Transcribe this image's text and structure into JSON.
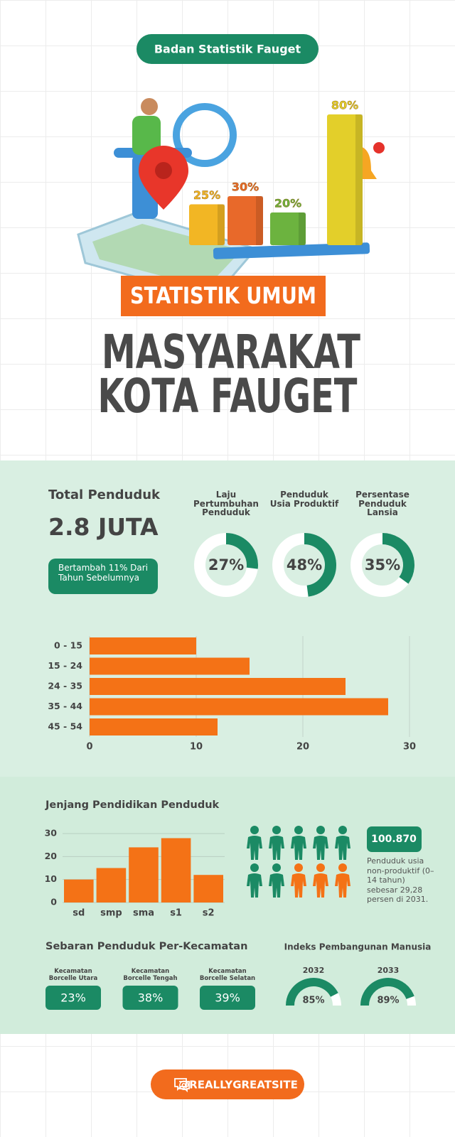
{
  "badge": "Badan Statistik Fauget",
  "banner": "STATISTIK UMUM",
  "title": [
    "MASYARAKAT",
    "KOTA FAUGET"
  ],
  "population": {
    "label": "Total Penduduk",
    "value": "2.8 JUTA",
    "note": "Bertambah 11% Dari Tahun Sebelumnya"
  },
  "chart_data": [
    {
      "type": "bar3d",
      "categories": [
        null,
        null,
        null,
        null
      ],
      "values": [
        25,
        30,
        20,
        80
      ],
      "value_labels": [
        "25%",
        "30%",
        "20%",
        "80%"
      ],
      "colors": [
        "#f2b624",
        "#e8692a",
        "#6cb33f",
        "#e3cf2a"
      ]
    },
    {
      "type": "donut",
      "categories": [
        "Laju Pertumbuhan Penduduk",
        "Penduduk Usia Produktif",
        "Persentase Penduduk Lansia"
      ],
      "values": [
        27,
        48,
        35
      ],
      "value_labels": [
        "27%",
        "48%",
        "35%"
      ],
      "color": "#1b8a64"
    },
    {
      "type": "hbar",
      "categories": [
        "0 - 15",
        "15 - 24",
        "24 - 35",
        "35 - 44",
        "45 - 54"
      ],
      "values": [
        10,
        15,
        24,
        28,
        12
      ],
      "xlim": [
        0,
        30
      ],
      "xticks": [
        0,
        10,
        20,
        30
      ],
      "grid": true,
      "color": "#f47216"
    },
    {
      "type": "bar",
      "title": "Jenjang Pendidikan Penduduk",
      "categories": [
        "sd",
        "smp",
        "sma",
        "s1",
        "s2"
      ],
      "values": [
        10,
        15,
        24,
        28,
        12
      ],
      "ylim": [
        0,
        30
      ],
      "yticks": [
        0,
        10,
        20,
        30
      ],
      "grid": true,
      "color": "#f47216"
    },
    {
      "type": "gauge",
      "title": "Indeks Pembangunan Manusia",
      "categories": [
        "2032",
        "2033"
      ],
      "values": [
        85,
        89
      ],
      "value_labels": [
        "85%",
        "89%"
      ],
      "color": "#1b8a64"
    }
  ],
  "non_productive": {
    "value": "100.870",
    "note": "Penduduk usia non-produktif (0–14 tahun) sebesar 29,28 persen di 2031."
  },
  "districts": {
    "title": "Sebaran Penduduk Per-Kecamatan",
    "items": [
      {
        "label": "Kecamatan Borcelle Utara",
        "value": "23%"
      },
      {
        "label": "Kecamatan Borcelle Tengah",
        "value": "38%"
      },
      {
        "label": "Kecamatan Borcelle Selatan",
        "value": "39%"
      }
    ]
  },
  "footer": "@REALLYGREATSITE"
}
